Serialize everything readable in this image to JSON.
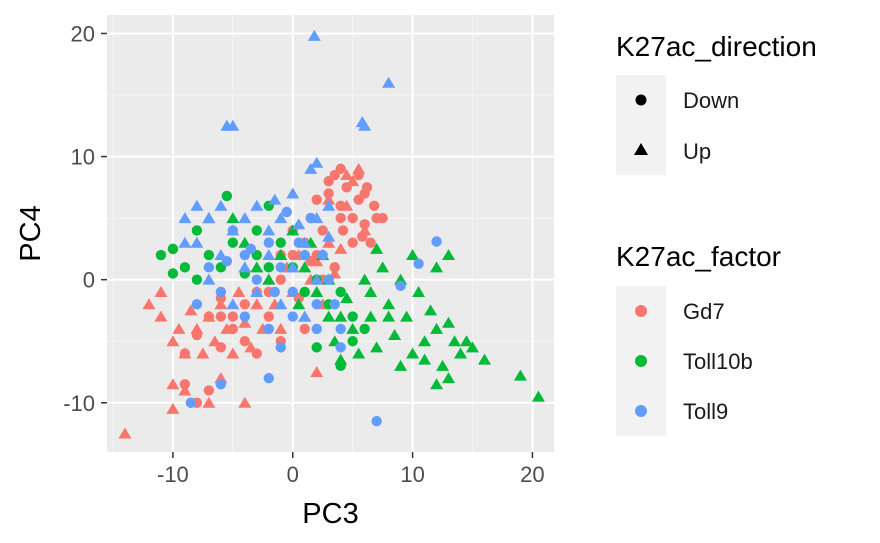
{
  "chart_data": {
    "type": "scatter",
    "xlabel": "PC3",
    "ylabel": "PC4",
    "xlim": [
      -15.5,
      21.8
    ],
    "ylim": [
      -14,
      21.5
    ],
    "x_ticks": [
      -10,
      0,
      10,
      20
    ],
    "y_ticks": [
      -10,
      0,
      10,
      20
    ],
    "x_tick_labels": [
      "-10",
      "0",
      "10",
      "20"
    ],
    "y_tick_labels": [
      "-10",
      "0",
      "10",
      "20"
    ],
    "grid": true,
    "legend_position": "right",
    "shape_legend": {
      "title": "K27ac_direction",
      "items": [
        {
          "label": "Down",
          "shape": "circle"
        },
        {
          "label": "Up",
          "shape": "triangle"
        }
      ]
    },
    "color_legend": {
      "title": "K27ac_factor",
      "items": [
        {
          "label": "Gd7",
          "color": "#F8766D"
        },
        {
          "label": "Toll10b",
          "color": "#00BA38"
        },
        {
          "label": "Toll9",
          "color": "#619CFF"
        }
      ]
    },
    "series": [
      {
        "name": "Gd7",
        "color": "#F8766D",
        "points": [
          [
            -14,
            -12.5,
            "Up"
          ],
          [
            -11,
            -1,
            "Up"
          ],
          [
            -11,
            -3,
            "Up"
          ],
          [
            -10,
            -5,
            "Up"
          ],
          [
            -10,
            -8.5,
            "Up"
          ],
          [
            -9.5,
            -4,
            "Up"
          ],
          [
            -9,
            -6,
            "Up"
          ],
          [
            -8.5,
            -2.5,
            "Up"
          ],
          [
            -8,
            -4,
            "Up"
          ],
          [
            -7.5,
            -6,
            "Up"
          ],
          [
            -7,
            -3,
            "Up"
          ],
          [
            -6.5,
            -5,
            "Up"
          ],
          [
            -6,
            -2,
            "Up"
          ],
          [
            -6,
            -8,
            "Up"
          ],
          [
            -5.5,
            -4,
            "Up"
          ],
          [
            -5,
            -6,
            "Up"
          ],
          [
            -4.5,
            -1,
            "Up"
          ],
          [
            -4,
            -3.5,
            "Up"
          ],
          [
            -3.5,
            -5.5,
            "Up"
          ],
          [
            -3,
            -2,
            "Up"
          ],
          [
            -2.5,
            -4,
            "Up"
          ],
          [
            -2,
            0,
            "Up"
          ],
          [
            -1.5,
            -2,
            "Up"
          ],
          [
            -1,
            -4,
            "Up"
          ],
          [
            -0.5,
            1,
            "Up"
          ],
          [
            0,
            -1,
            "Up"
          ],
          [
            0.5,
            2,
            "Up"
          ],
          [
            1,
            -3,
            "Up"
          ],
          [
            1.5,
            0,
            "Up"
          ],
          [
            2,
            1.5,
            "Up"
          ],
          [
            2.5,
            -2,
            "Up"
          ],
          [
            3,
            3,
            "Up"
          ],
          [
            3.5,
            0.5,
            "Up"
          ],
          [
            4,
            2.5,
            "Up"
          ],
          [
            4.5,
            6,
            "Up"
          ],
          [
            5,
            8,
            "Up"
          ],
          [
            5.5,
            9,
            "Up"
          ],
          [
            6,
            4,
            "Up"
          ],
          [
            -10,
            -10.5,
            "Up"
          ],
          [
            -7,
            -10,
            "Up"
          ],
          [
            -4,
            -10,
            "Up"
          ],
          [
            -9,
            -9,
            "Up"
          ],
          [
            2,
            -7.5,
            "Up"
          ],
          [
            -12,
            -2,
            "Up"
          ],
          [
            4.5,
            8.5,
            "Up"
          ],
          [
            3,
            6.5,
            "Up"
          ],
          [
            -8,
            -10,
            "Down"
          ],
          [
            -7,
            -9,
            "Down"
          ],
          [
            -9,
            -6,
            "Down"
          ],
          [
            -8,
            -4.5,
            "Down"
          ],
          [
            -7,
            -3,
            "Down"
          ],
          [
            -6,
            -1.5,
            "Down"
          ],
          [
            -5,
            -3,
            "Down"
          ],
          [
            -4,
            -5,
            "Down"
          ],
          [
            -3,
            -1,
            "Down"
          ],
          [
            -2,
            -3,
            "Down"
          ],
          [
            -1,
            0,
            "Down"
          ],
          [
            0,
            2,
            "Down"
          ],
          [
            0.5,
            -1.5,
            "Down"
          ],
          [
            1,
            3,
            "Down"
          ],
          [
            1.5,
            5,
            "Down"
          ],
          [
            2,
            6.5,
            "Down"
          ],
          [
            2.5,
            4,
            "Down"
          ],
          [
            3,
            7,
            "Down"
          ],
          [
            3.5,
            8.5,
            "Down"
          ],
          [
            4,
            6,
            "Down"
          ],
          [
            4.5,
            7.5,
            "Down"
          ],
          [
            5,
            5,
            "Down"
          ],
          [
            5.5,
            6.5,
            "Down"
          ],
          [
            6,
            4.5,
            "Down"
          ],
          [
            6.5,
            3,
            "Down"
          ],
          [
            7,
            5,
            "Down"
          ],
          [
            7.5,
            5,
            "Down"
          ],
          [
            6,
            7,
            "Down"
          ],
          [
            5.5,
            8.5,
            "Down"
          ],
          [
            4,
            9,
            "Down"
          ],
          [
            3,
            8,
            "Down"
          ],
          [
            2,
            2,
            "Down"
          ],
          [
            1,
            -4,
            "Down"
          ],
          [
            -1,
            -5,
            "Down"
          ],
          [
            -3,
            -6,
            "Down"
          ],
          [
            -5,
            -4,
            "Down"
          ],
          [
            -6,
            -5.5,
            "Down"
          ],
          [
            -9,
            -8.5,
            "Down"
          ],
          [
            4,
            5,
            "Down"
          ],
          [
            5,
            3,
            "Down"
          ],
          [
            3.5,
            1,
            "Down"
          ],
          [
            2.5,
            0,
            "Down"
          ],
          [
            1.5,
            1.5,
            "Down"
          ],
          [
            0,
            4,
            "Down"
          ],
          [
            -1,
            2,
            "Down"
          ],
          [
            -2,
            -1,
            "Down"
          ],
          [
            -4,
            -2,
            "Down"
          ],
          [
            -6,
            -3,
            "Down"
          ],
          [
            6.8,
            6,
            "Down"
          ],
          [
            6.2,
            7.5,
            "Down"
          ],
          [
            5.8,
            3.5,
            "Down"
          ],
          [
            4.2,
            4,
            "Down"
          ]
        ]
      },
      {
        "name": "Toll10b",
        "color": "#00BA38",
        "points": [
          [
            20.5,
            -9.5,
            "Up"
          ],
          [
            19,
            -7.8,
            "Up"
          ],
          [
            16,
            -6.5,
            "Up"
          ],
          [
            15,
            -5.5,
            "Up"
          ],
          [
            14,
            -6,
            "Up"
          ],
          [
            13.5,
            -5,
            "Up"
          ],
          [
            13,
            -3.5,
            "Up"
          ],
          [
            13,
            2,
            "Up"
          ],
          [
            12.5,
            -7,
            "Up"
          ],
          [
            12,
            -4,
            "Up"
          ],
          [
            11.5,
            -2.5,
            "Up"
          ],
          [
            11,
            -5,
            "Up"
          ],
          [
            10.5,
            -1,
            "Up"
          ],
          [
            10,
            -6,
            "Up"
          ],
          [
            9.5,
            -3,
            "Up"
          ],
          [
            9,
            0,
            "Up"
          ],
          [
            8.5,
            -4.5,
            "Up"
          ],
          [
            8,
            -2,
            "Up"
          ],
          [
            7.5,
            1,
            "Up"
          ],
          [
            7,
            -5.5,
            "Up"
          ],
          [
            6.5,
            -3,
            "Up"
          ],
          [
            6,
            0,
            "Up"
          ],
          [
            5.5,
            -6,
            "Up"
          ],
          [
            5,
            -4,
            "Up"
          ],
          [
            4.5,
            -1.5,
            "Up"
          ],
          [
            4,
            -3,
            "Up"
          ],
          [
            3.5,
            -5,
            "Up"
          ],
          [
            3,
            0,
            "Up"
          ],
          [
            2.5,
            2,
            "Up"
          ],
          [
            2,
            -1,
            "Up"
          ],
          [
            1.5,
            3,
            "Up"
          ],
          [
            1,
            1,
            "Up"
          ],
          [
            0.5,
            -2,
            "Up"
          ],
          [
            0,
            4,
            "Up"
          ],
          [
            -1,
            2,
            "Up"
          ],
          [
            -2,
            0,
            "Up"
          ],
          [
            -3,
            1,
            "Up"
          ],
          [
            -4,
            3,
            "Up"
          ],
          [
            -5,
            5,
            "Up"
          ],
          [
            -7,
            5,
            "Up"
          ],
          [
            9,
            -7,
            "Up"
          ],
          [
            13,
            -8,
            "Up"
          ],
          [
            11,
            -6.5,
            "Up"
          ],
          [
            12,
            1,
            "Up"
          ],
          [
            10,
            2,
            "Up"
          ],
          [
            8,
            -3,
            "Up"
          ],
          [
            7,
            2.5,
            "Up"
          ],
          [
            6.5,
            -1,
            "Up"
          ],
          [
            4,
            -6.5,
            "Up"
          ],
          [
            3,
            -3,
            "Up"
          ],
          [
            12,
            -8.5,
            "Up"
          ],
          [
            14.5,
            -5,
            "Up"
          ],
          [
            -10,
            2.5,
            "Down"
          ],
          [
            -10,
            0.5,
            "Down"
          ],
          [
            -9,
            1,
            "Down"
          ],
          [
            -8,
            0,
            "Down"
          ],
          [
            -7,
            2,
            "Down"
          ],
          [
            -6,
            1,
            "Down"
          ],
          [
            -5,
            3,
            "Down"
          ],
          [
            -4,
            0.5,
            "Down"
          ],
          [
            -3,
            2,
            "Down"
          ],
          [
            -2,
            1,
            "Down"
          ],
          [
            -1,
            3,
            "Down"
          ],
          [
            0,
            1,
            "Down"
          ],
          [
            1,
            -1,
            "Down"
          ],
          [
            2,
            0,
            "Down"
          ],
          [
            3,
            -2,
            "Down"
          ],
          [
            4,
            -1,
            "Down"
          ],
          [
            5,
            -3,
            "Down"
          ],
          [
            6,
            -4,
            "Down"
          ],
          [
            5,
            -5,
            "Down"
          ],
          [
            4,
            -7,
            "Down"
          ],
          [
            2,
            -5.5,
            "Down"
          ],
          [
            -2,
            6,
            "Down"
          ],
          [
            -5.5,
            6.8,
            "Down"
          ],
          [
            -8,
            4,
            "Down"
          ],
          [
            -11,
            2,
            "Down"
          ],
          [
            -3,
            4,
            "Down"
          ]
        ]
      },
      {
        "name": "Toll9",
        "color": "#619CFF",
        "points": [
          [
            1.8,
            19.8,
            "Up"
          ],
          [
            8,
            16,
            "Up"
          ],
          [
            -5.5,
            12.5,
            "Up"
          ],
          [
            -5,
            12.5,
            "Up"
          ],
          [
            5.8,
            12.8,
            "Up"
          ],
          [
            6,
            12.5,
            "Up"
          ],
          [
            2,
            9.5,
            "Up"
          ],
          [
            1.5,
            9,
            "Up"
          ],
          [
            -6,
            6,
            "Up"
          ],
          [
            -8,
            6,
            "Up"
          ],
          [
            -7,
            5,
            "Up"
          ],
          [
            -9,
            5,
            "Up"
          ],
          [
            -5,
            4,
            "Up"
          ],
          [
            -4,
            5,
            "Up"
          ],
          [
            -3,
            6,
            "Up"
          ],
          [
            -2,
            4,
            "Up"
          ],
          [
            -1,
            5,
            "Up"
          ],
          [
            0,
            7,
            "Up"
          ],
          [
            1,
            3,
            "Up"
          ],
          [
            2,
            5,
            "Up"
          ],
          [
            3,
            6,
            "Up"
          ],
          [
            -8,
            3,
            "Up"
          ],
          [
            -6,
            2,
            "Up"
          ],
          [
            -4,
            1,
            "Up"
          ],
          [
            -2,
            2,
            "Up"
          ],
          [
            0,
            1,
            "Up"
          ],
          [
            2,
            0,
            "Up"
          ],
          [
            -1,
            -2,
            "Up"
          ],
          [
            1,
            -3,
            "Up"
          ],
          [
            -3,
            -1,
            "Up"
          ],
          [
            -5,
            -2,
            "Up"
          ],
          [
            -7,
            0,
            "Up"
          ],
          [
            0.5,
            4.5,
            "Up"
          ],
          [
            -1.5,
            6.5,
            "Up"
          ],
          [
            -9,
            3,
            "Up"
          ],
          [
            3,
            3.5,
            "Up"
          ],
          [
            12,
            3.1,
            "Down"
          ],
          [
            10.5,
            1.3,
            "Down"
          ],
          [
            9,
            -0.5,
            "Down"
          ],
          [
            7,
            -11.5,
            "Down"
          ],
          [
            -8.5,
            -10,
            "Down"
          ],
          [
            -6,
            -8.5,
            "Down"
          ],
          [
            -2,
            -8,
            "Down"
          ],
          [
            4,
            -5.5,
            "Down"
          ],
          [
            -5,
            4,
            "Down"
          ],
          [
            -4,
            2,
            "Down"
          ],
          [
            -3,
            0,
            "Down"
          ],
          [
            -2,
            3,
            "Down"
          ],
          [
            -1,
            1,
            "Down"
          ],
          [
            0,
            -1,
            "Down"
          ],
          [
            1,
            2,
            "Down"
          ],
          [
            2,
            -2,
            "Down"
          ],
          [
            3,
            0,
            "Down"
          ],
          [
            -6,
            -1,
            "Down"
          ],
          [
            -7,
            1,
            "Down"
          ],
          [
            -8,
            -2,
            "Down"
          ],
          [
            -4,
            -3,
            "Down"
          ],
          [
            -2,
            -4,
            "Down"
          ],
          [
            0,
            -3,
            "Down"
          ],
          [
            2,
            -4,
            "Down"
          ],
          [
            1.5,
            5,
            "Down"
          ],
          [
            -0.5,
            5.5,
            "Down"
          ],
          [
            -1.5,
            -1,
            "Down"
          ],
          [
            2.5,
            2,
            "Down"
          ],
          [
            3.5,
            -2,
            "Down"
          ],
          [
            -3.5,
            2.5,
            "Down"
          ],
          [
            -5.5,
            1.5,
            "Down"
          ],
          [
            0.5,
            3,
            "Down"
          ],
          [
            4,
            -4,
            "Down"
          ],
          [
            -1,
            -5.5,
            "Down"
          ]
        ]
      }
    ]
  }
}
